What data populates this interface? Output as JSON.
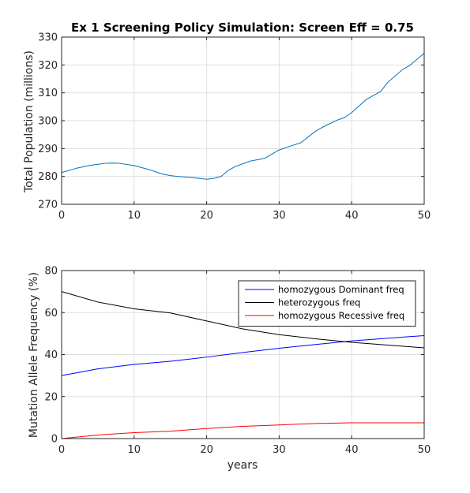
{
  "chart_data": [
    {
      "type": "line",
      "title": "Ex 1 Screening Policy Simulation: Screen Eff = 0.75",
      "xlabel": "",
      "ylabel": "Total Population (millions)",
      "xlim": [
        0,
        50
      ],
      "ylim": [
        270,
        330
      ],
      "xticks": [
        0,
        10,
        20,
        30,
        40,
        50
      ],
      "yticks": [
        270,
        280,
        290,
        300,
        310,
        320,
        330
      ],
      "grid": true,
      "series": [
        {
          "color": "#0072BD",
          "x": [
            0,
            2,
            4,
            6,
            7,
            8,
            10,
            12,
            14,
            15,
            16,
            18,
            20,
            21,
            22,
            23,
            24,
            26,
            28,
            30,
            31,
            33,
            35,
            36,
            38,
            39,
            40,
            42,
            44,
            45,
            47,
            48,
            50
          ],
          "y": [
            281.4,
            282.9,
            284.0,
            284.7,
            284.8,
            284.7,
            283.9,
            282.5,
            280.8,
            280.3,
            280.0,
            279.6,
            279.0,
            279.3,
            280.0,
            282.2,
            283.6,
            285.5,
            286.5,
            289.5,
            290.4,
            292.1,
            296.2,
            297.7,
            300.2,
            301.1,
            302.9,
            307.6,
            310.5,
            313.8,
            318.3,
            319.8,
            324.2
          ]
        }
      ]
    },
    {
      "type": "line",
      "title": "",
      "xlabel": "years",
      "ylabel": "Mutation Allele Frequency (%)",
      "xlim": [
        0,
        50
      ],
      "ylim": [
        0,
        80
      ],
      "xticks": [
        0,
        10,
        20,
        30,
        40,
        50
      ],
      "yticks": [
        0,
        20,
        40,
        60,
        80
      ],
      "grid": true,
      "legend": "top-right",
      "series": [
        {
          "name": "homozygous Dominant freq",
          "color": "#0000ff",
          "x": [
            0,
            5,
            10,
            15,
            20,
            25,
            30,
            35,
            40,
            45,
            50
          ],
          "y": [
            30.0,
            33.2,
            35.3,
            36.8,
            38.8,
            41.0,
            43.0,
            44.8,
            46.5,
            47.8,
            49.0
          ]
        },
        {
          "name": "heterozygous freq",
          "color": "#000000",
          "x": [
            0,
            5,
            10,
            15,
            20,
            25,
            30,
            35,
            40,
            45,
            50
          ],
          "y": [
            70.0,
            65.0,
            61.8,
            59.8,
            56.0,
            52.2,
            49.5,
            47.5,
            45.8,
            44.5,
            43.2
          ]
        },
        {
          "name": "homozygous Recessive freq",
          "color": "#ff0000",
          "x": [
            0,
            5,
            10,
            15,
            20,
            25,
            30,
            35,
            40,
            45,
            50
          ],
          "y": [
            0.0,
            1.7,
            2.8,
            3.5,
            4.8,
            5.8,
            6.5,
            7.2,
            7.5,
            7.5,
            7.5
          ]
        }
      ]
    }
  ]
}
